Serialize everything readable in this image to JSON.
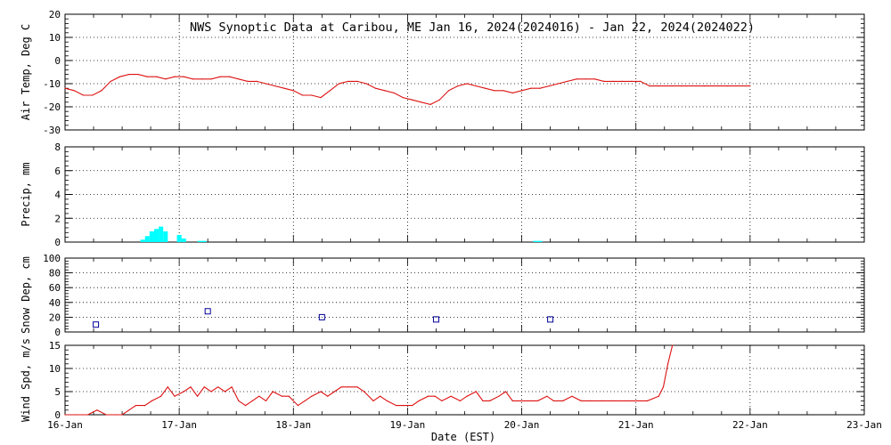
{
  "title": "NWS Synoptic Data at Caribou, ME   Jan 16, 2024(2024016) - Jan 22, 2024(2024022)",
  "xlabel": "Date (EST)",
  "x_ticks": [
    "16-Jan",
    "17-Jan",
    "18-Jan",
    "19-Jan",
    "20-Jan",
    "21-Jan",
    "22-Jan",
    "23-Jan"
  ],
  "colors": {
    "temp": "#dd1111",
    "precip": "#00ffff",
    "snow": "#000099",
    "wind": "#dd1111"
  },
  "chart_data": [
    {
      "type": "line",
      "id": "temp",
      "ylabel": "Air Temp, Deg C",
      "ylim": [
        -30,
        20
      ],
      "y_ticks": [
        20,
        10,
        0,
        -10,
        -20,
        -30
      ],
      "x_unit": "days since 16-Jan 00:00 EST",
      "x": [
        0.0,
        0.08,
        0.16,
        0.24,
        0.32,
        0.4,
        0.48,
        0.56,
        0.64,
        0.72,
        0.8,
        0.88,
        0.96,
        1.04,
        1.12,
        1.2,
        1.28,
        1.36,
        1.44,
        1.52,
        1.6,
        1.68,
        1.76,
        1.84,
        1.92,
        2.0,
        2.08,
        2.16,
        2.24,
        2.32,
        2.4,
        2.48,
        2.56,
        2.64,
        2.72,
        2.8,
        2.88,
        2.96,
        3.04,
        3.12,
        3.2,
        3.28,
        3.36,
        3.44,
        3.52,
        3.6,
        3.68,
        3.76,
        3.84,
        3.92,
        4.0,
        4.08,
        4.16,
        4.24,
        4.32,
        4.4,
        4.48,
        4.56,
        4.64,
        4.72,
        4.8,
        4.88,
        4.96,
        5.04,
        5.12,
        5.2,
        5.4,
        5.6,
        5.8,
        6.0
      ],
      "y": [
        -12,
        -13,
        -15,
        -15,
        -13,
        -9,
        -7,
        -6,
        -6,
        -7,
        -7,
        -8,
        -7,
        -7,
        -8,
        -8,
        -8,
        -7,
        -7,
        -8,
        -9,
        -9,
        -10,
        -11,
        -12,
        -13,
        -15,
        -15,
        -16,
        -13,
        -10,
        -9,
        -9,
        -10,
        -12,
        -13,
        -14,
        -16,
        -17,
        -18,
        -19,
        -17,
        -13,
        -11,
        -10,
        -11,
        -12,
        -13,
        -13,
        -14,
        -13,
        -12,
        -12,
        -11,
        -10,
        -9,
        -8,
        -8,
        -8,
        -9,
        -9,
        -9,
        -9,
        -9,
        -11,
        -11,
        -11,
        -11,
        -11,
        -11
      ]
    },
    {
      "type": "bar",
      "id": "precip",
      "ylabel": "Precip, mm",
      "ylim": [
        0,
        8
      ],
      "y_ticks": [
        8,
        6,
        4,
        2,
        0
      ],
      "x": [
        0.68,
        0.72,
        0.76,
        0.8,
        0.84,
        0.88,
        1.0,
        1.04,
        1.18,
        1.22,
        4.12,
        4.16
      ],
      "values": [
        0.2,
        0.5,
        0.9,
        1.1,
        1.3,
        0.9,
        0.6,
        0.3,
        0.1,
        0.1,
        0.1,
        0.1
      ]
    },
    {
      "type": "scatter",
      "id": "snow",
      "ylabel": "Snow Dep, cm",
      "ylim": [
        0,
        100
      ],
      "y_ticks": [
        100,
        80,
        60,
        40,
        20,
        0
      ],
      "x": [
        0.27,
        1.25,
        2.25,
        3.25,
        4.25
      ],
      "y": [
        10,
        28,
        20,
        17,
        17
      ]
    },
    {
      "type": "line",
      "id": "wind",
      "ylabel": "Wind Spd, m/s",
      "ylim": [
        0,
        15
      ],
      "y_ticks": [
        15,
        10,
        5,
        0
      ],
      "x": [
        0.0,
        0.1,
        0.2,
        0.28,
        0.36,
        0.44,
        0.5,
        0.56,
        0.62,
        0.7,
        0.76,
        0.84,
        0.9,
        0.96,
        1.04,
        1.1,
        1.16,
        1.22,
        1.28,
        1.34,
        1.4,
        1.46,
        1.52,
        1.58,
        1.64,
        1.7,
        1.76,
        1.82,
        1.9,
        1.96,
        2.04,
        2.1,
        2.16,
        2.24,
        2.3,
        2.36,
        2.42,
        2.48,
        2.56,
        2.62,
        2.7,
        2.76,
        2.82,
        2.9,
        2.96,
        3.04,
        3.1,
        3.18,
        3.24,
        3.3,
        3.38,
        3.46,
        3.52,
        3.6,
        3.66,
        3.72,
        3.8,
        3.86,
        3.92,
        4.0,
        4.08,
        4.14,
        4.22,
        4.28,
        4.36,
        4.44,
        4.52,
        4.6,
        4.7,
        4.8,
        4.9,
        5.0,
        5.1,
        5.2,
        5.24,
        5.28,
        5.32
      ],
      "y": [
        0,
        0,
        0,
        1,
        0,
        0,
        0,
        1,
        2,
        2,
        3,
        4,
        6,
        4,
        5,
        6,
        4,
        6,
        5,
        6,
        5,
        6,
        3,
        2,
        3,
        4,
        3,
        5,
        4,
        4,
        2,
        3,
        4,
        5,
        4,
        5,
        6,
        6,
        6,
        5,
        3,
        4,
        3,
        2,
        2,
        2,
        3,
        4,
        4,
        3,
        4,
        3,
        4,
        5,
        3,
        3,
        4,
        5,
        3,
        3,
        3,
        3,
        4,
        3,
        3,
        4,
        3,
        3,
        3,
        3,
        3,
        3,
        3,
        4,
        6,
        11,
        15
      ]
    }
  ]
}
